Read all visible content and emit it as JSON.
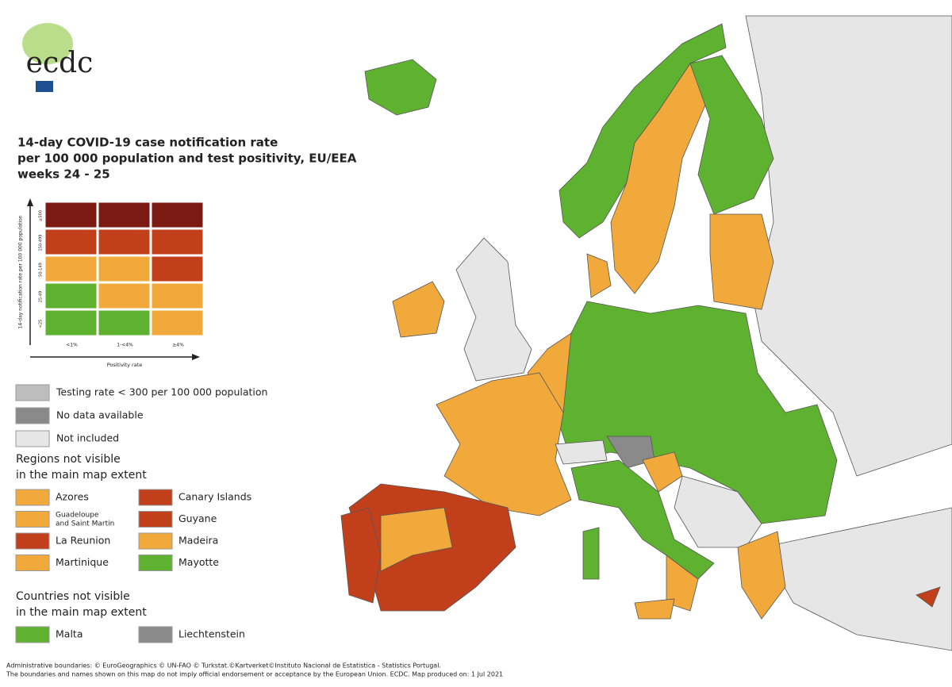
{
  "logo": {
    "text": "ecdc"
  },
  "title": [
    "14-day COVID-19 case notification rate",
    "per 100 000 population and test positivity, EU/EEA",
    "weeks 24 - 25"
  ],
  "matrix": {
    "y_label": "14-day notification rate per 100 000 population",
    "x_label": "Positivity rate",
    "rows": [
      "≥500",
      "150-499",
      "50-149",
      "25-49",
      "<25"
    ],
    "columns": [
      "<1%",
      "1-<4%",
      "≥4%"
    ],
    "colors": [
      [
        "#7b1a12",
        "#7b1a12",
        "#7b1a12"
      ],
      [
        "#c1401b",
        "#c1401b",
        "#c1401b"
      ],
      [
        "#f2a93b",
        "#f2a93b",
        "#c1401b"
      ],
      [
        "#5fb130",
        "#f2a93b",
        "#f2a93b"
      ],
      [
        "#5fb130",
        "#5fb130",
        "#f2a93b"
      ]
    ]
  },
  "legend": [
    {
      "label": "Testing rate < 300 per 100 000 population",
      "color": "#bdbdbd"
    },
    {
      "label": "No data available",
      "color": "#8a8a8a"
    },
    {
      "label": "Not included",
      "color": "#e6e6e6"
    }
  ],
  "regions": {
    "heading": [
      "Regions not visible",
      "in the main map extent"
    ],
    "items": [
      {
        "label": [
          "Azores"
        ],
        "color": "#f2a93b"
      },
      {
        "label": [
          "Canary Islands"
        ],
        "color": "#c1401b"
      },
      {
        "label": [
          "Guadeloupe",
          "and Saint Martin"
        ],
        "color": "#f2a93b"
      },
      {
        "label": [
          "Guyane"
        ],
        "color": "#c1401b"
      },
      {
        "label": [
          "La Reunion"
        ],
        "color": "#c1401b"
      },
      {
        "label": [
          "Madeira"
        ],
        "color": "#f2a93b"
      },
      {
        "label": [
          "Martinique"
        ],
        "color": "#f2a93b"
      },
      {
        "label": [
          "Mayotte"
        ],
        "color": "#5fb130"
      }
    ]
  },
  "countries": {
    "heading": [
      "Countries not visible",
      "in the main map extent"
    ],
    "items": [
      {
        "label": [
          "Malta"
        ],
        "color": "#5fb130"
      },
      {
        "label": [
          "Liechtenstein"
        ],
        "color": "#8a8a8a"
      }
    ]
  },
  "footer": [
    "Administrative boundaries: © EuroGeographics © UN-FAO © Turkstat.©Kartverket©Instituto Nacional de Estatistica - Statistics Portugal.",
    "The boundaries and names shown on this map do not imply official endorsement or acceptance by the European Union. ECDC. Map produced on: 1 Jul 2021"
  ]
}
